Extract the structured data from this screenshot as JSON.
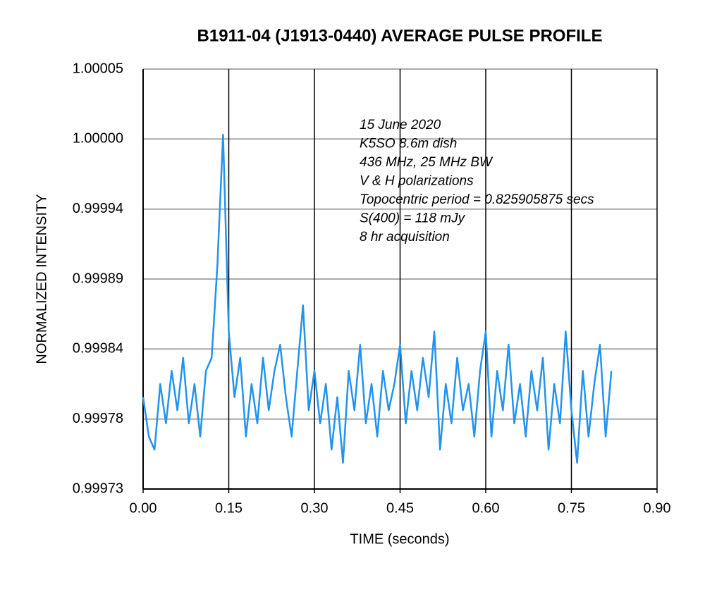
{
  "chart_data": {
    "type": "line",
    "title": "B1911-04 (J1913-0440) AVERAGE PULSE PROFILE",
    "xlabel": "TIME (seconds)",
    "ylabel": "NORMALIZED INTENSITY",
    "annotations": [
      "15 June 2020",
      "K5SO 8.6m dish",
      "436 MHz, 25 MHz BW",
      "V & H polarizations",
      "Topocentric period = 0.825905875 secs",
      "S(400) = 118 mJy",
      "8 hr acquisition"
    ],
    "color": "#2293ee",
    "grid": true,
    "xlim": [
      0,
      0.9
    ],
    "xticks": [
      {
        "value": 0,
        "label": "0.00"
      },
      0.15,
      {
        "value": 0.3,
        "label": "0.30"
      },
      0.45,
      {
        "value": 0.6,
        "label": "0.60"
      },
      0.75,
      {
        "value": 0.9,
        "label": "0.90"
      }
    ],
    "ylim": [
      0.99973,
      1.00005
    ],
    "yticks": [
      {
        "value": 0.99973,
        "label": "0.99973"
      },
      {
        "value": 0.9997833,
        "label": "0.99978"
      },
      {
        "value": 0.9998367,
        "label": "0.99984"
      },
      {
        "value": 0.99989,
        "label": "0.99989"
      },
      {
        "value": 0.9999433,
        "label": "0.99994"
      },
      {
        "value": 0.9999967,
        "label": "1.00000"
      },
      {
        "value": 1.00005,
        "label": "1.00005"
      }
    ],
    "x": [
      0,
      0.01,
      0.02,
      0.03,
      0.04,
      0.05,
      0.06,
      0.07,
      0.08,
      0.09,
      0.1,
      0.11,
      0.12,
      0.13,
      0.14,
      0.15,
      0.16,
      0.17,
      0.18,
      0.19,
      0.2,
      0.21,
      0.22,
      0.23,
      0.24,
      0.25,
      0.26,
      0.27,
      0.28,
      0.29,
      0.3,
      0.31,
      0.32,
      0.33,
      0.34,
      0.35,
      0.36,
      0.37,
      0.38,
      0.39,
      0.4,
      0.41,
      0.42,
      0.43,
      0.44,
      0.45,
      0.46,
      0.47,
      0.48,
      0.49,
      0.5,
      0.51,
      0.52,
      0.53,
      0.54,
      0.55,
      0.56,
      0.57,
      0.58,
      0.59,
      0.6,
      0.61,
      0.62,
      0.63,
      0.64,
      0.65,
      0.66,
      0.67,
      0.68,
      0.69,
      0.7,
      0.71,
      0.72,
      0.73,
      0.74,
      0.75,
      0.76,
      0.77,
      0.78,
      0.79,
      0.8,
      0.81,
      0.82
    ],
    "values": [
      0.9998,
      0.99977,
      0.99976,
      0.99981,
      0.99978,
      0.99982,
      0.99979,
      0.99983,
      0.99978,
      0.99981,
      0.99977,
      0.99982,
      0.99983,
      0.9999,
      1.0,
      0.99985,
      0.9998,
      0.99983,
      0.99977,
      0.99981,
      0.99978,
      0.99983,
      0.99979,
      0.99982,
      0.99984,
      0.9998,
      0.99977,
      0.99982,
      0.99987,
      0.99979,
      0.99982,
      0.99978,
      0.99981,
      0.99976,
      0.9998,
      0.99975,
      0.99982,
      0.99979,
      0.99984,
      0.99978,
      0.99981,
      0.99977,
      0.99982,
      0.99979,
      0.99981,
      0.99984,
      0.99978,
      0.99982,
      0.99979,
      0.99983,
      0.9998,
      0.99985,
      0.99976,
      0.99981,
      0.99978,
      0.99983,
      0.99979,
      0.99981,
      0.99977,
      0.99982,
      0.99985,
      0.99977,
      0.99982,
      0.99979,
      0.99984,
      0.99978,
      0.99981,
      0.99977,
      0.99982,
      0.99979,
      0.99983,
      0.99976,
      0.99981,
      0.99978,
      0.99985,
      0.99979,
      0.99975,
      0.99982,
      0.99977,
      0.99981,
      0.99984,
      0.99977,
      0.99982
    ]
  }
}
